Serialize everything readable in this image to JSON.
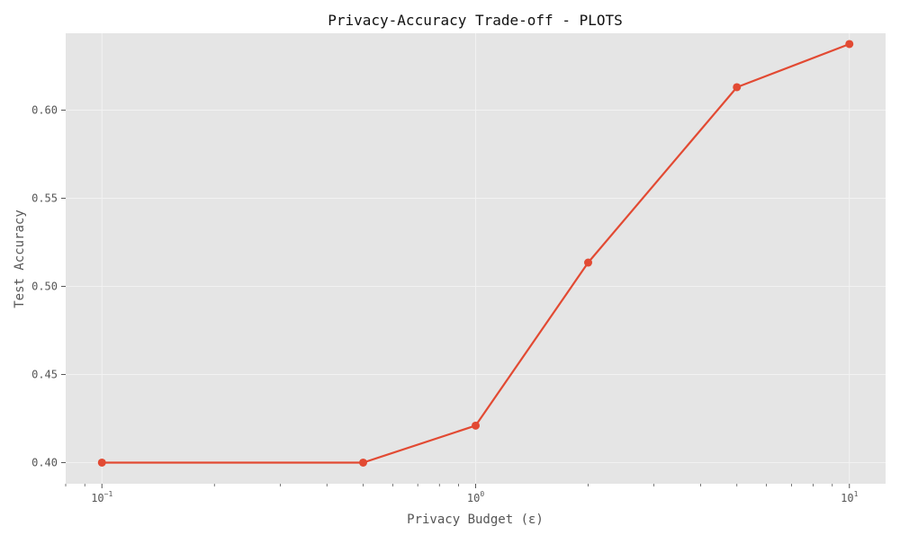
{
  "chart_data": {
    "type": "line",
    "title": "Privacy-Accuracy Trade-off - PLOTS",
    "xlabel": "Privacy Budget (ε)",
    "ylabel": "Test Accuracy",
    "x_scale": "log",
    "xlim": [
      0.08,
      12.5
    ],
    "ylim": [
      0.388,
      0.6436
    ],
    "grid": true,
    "x_ticks": [
      {
        "value": 0.1,
        "base": "10",
        "exp": "−1"
      },
      {
        "value": 1,
        "base": "10",
        "exp": "0"
      },
      {
        "value": 10,
        "base": "10",
        "exp": "1"
      }
    ],
    "y_ticks": [
      {
        "value": 0.4,
        "label": "0.40"
      },
      {
        "value": 0.45,
        "label": "0.45"
      },
      {
        "value": 0.5,
        "label": "0.50"
      },
      {
        "value": 0.55,
        "label": "0.55"
      },
      {
        "value": 0.6,
        "label": "0.60"
      }
    ],
    "series": [
      {
        "x": [
          0.1,
          0.5,
          1.0,
          2.0,
          5.0,
          10.0
        ],
        "values": [
          0.4,
          0.4,
          0.421,
          0.5135,
          0.613,
          0.6375
        ],
        "color": "#E24A33"
      }
    ]
  },
  "colors": {
    "plot_bg": "#E5E5E5",
    "grid": "#F2F2F2",
    "tick": "#555555"
  }
}
